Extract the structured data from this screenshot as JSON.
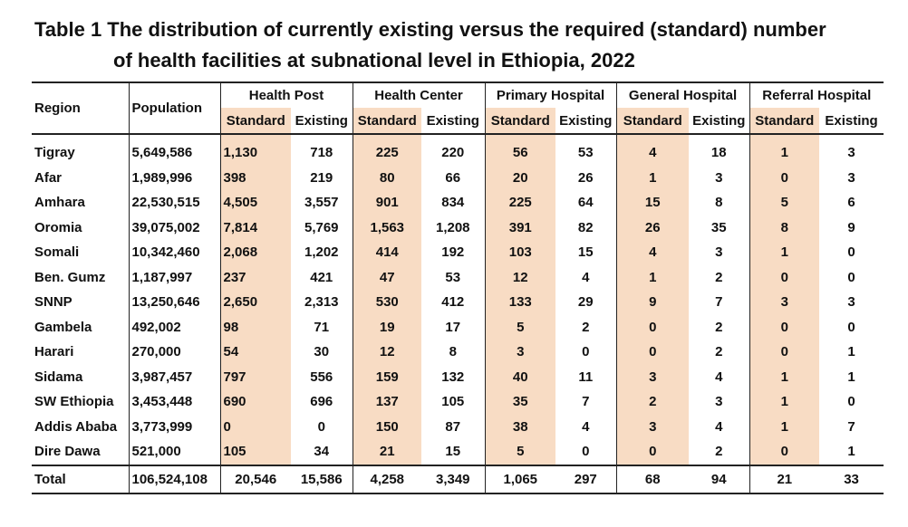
{
  "title_lines": [
    "Table 1 The distribution of currently existing versus the required (standard) number",
    "of health facilities at subnational level in Ethiopia, 2022"
  ],
  "header": {
    "region": "Region",
    "population": "Population",
    "groups": [
      {
        "name": "Health Post",
        "sub": [
          "Standard",
          "Existing"
        ]
      },
      {
        "name": "Health Center",
        "sub": [
          "Standard",
          "Existing"
        ]
      },
      {
        "name": "Primary Hospital",
        "sub": [
          "Standard",
          "Existing"
        ]
      },
      {
        "name": "General Hospital",
        "sub": [
          "Standard",
          "Existing"
        ]
      },
      {
        "name": "Referral Hospital",
        "sub": [
          "Standard",
          "Existing"
        ]
      }
    ]
  },
  "table": {
    "rows": [
      [
        "Tigray",
        "5,649,586",
        "1,130",
        "718",
        "225",
        "220",
        "56",
        "53",
        "4",
        "18",
        "1",
        "3"
      ],
      [
        "Afar",
        "1,989,996",
        "398",
        "219",
        "80",
        "66",
        "20",
        "26",
        "1",
        "3",
        "0",
        "3"
      ],
      [
        "Amhara",
        "22,530,515",
        "4,505",
        "3,557",
        "901",
        "834",
        "225",
        "64",
        "15",
        "8",
        "5",
        "6"
      ],
      [
        "Oromia",
        "39,075,002",
        "7,814",
        "5,769",
        "1,563",
        "1,208",
        "391",
        "82",
        "26",
        "35",
        "8",
        "9"
      ],
      [
        "Somali",
        "10,342,460",
        "2,068",
        "1,202",
        "414",
        "192",
        "103",
        "15",
        "4",
        "3",
        "1",
        "0"
      ],
      [
        "Ben. Gumz",
        "1,187,997",
        "237",
        "421",
        "47",
        "53",
        "12",
        "4",
        "1",
        "2",
        "0",
        "0"
      ],
      [
        "SNNP",
        "13,250,646",
        "2,650",
        "2,313",
        "530",
        "412",
        "133",
        "29",
        "9",
        "7",
        "3",
        "3"
      ],
      [
        "Gambela",
        "492,002",
        "98",
        "71",
        "19",
        "17",
        "5",
        "2",
        "0",
        "2",
        "0",
        "0"
      ],
      [
        "Harari",
        "270,000",
        "54",
        "30",
        "12",
        "8",
        "3",
        "0",
        "0",
        "2",
        "0",
        "1"
      ],
      [
        "Sidama",
        "3,987,457",
        "797",
        "556",
        "159",
        "132",
        "40",
        "11",
        "3",
        "4",
        "1",
        "1"
      ],
      [
        "SW Ethiopia",
        "3,453,448",
        "690",
        "696",
        "137",
        "105",
        "35",
        "7",
        "2",
        "3",
        "1",
        "0"
      ],
      [
        "Addis Ababa",
        "3,773,999",
        "0",
        "0",
        "150",
        "87",
        "38",
        "4",
        "3",
        "4",
        "1",
        "7"
      ],
      [
        "Dire Dawa",
        "521,000",
        "105",
        "34",
        "21",
        "15",
        "5",
        "0",
        "0",
        "2",
        "0",
        "1"
      ]
    ],
    "total": [
      "Total",
      "106,524,108",
      "20,546",
      "15,586",
      "4,258",
      "3,349",
      "1,065",
      "297",
      "68",
      "94",
      "21",
      "33"
    ]
  }
}
